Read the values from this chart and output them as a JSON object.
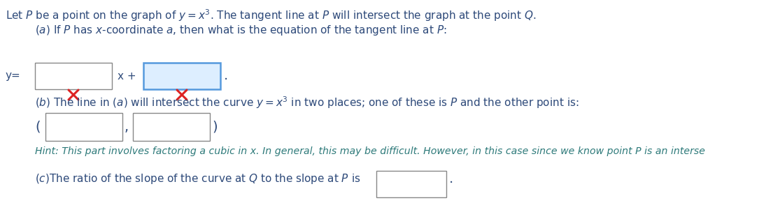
{
  "bg_color": "#ffffff",
  "text_color": "#2e4a7a",
  "hint_color": "#2e7a7a",
  "box_border_color": "#888888",
  "box_fill_color": "#ffffff",
  "active_box_border": "#5599dd",
  "active_box_fill": "#ddeeff",
  "cross_color": "#dd2222",
  "hint_text": "Hint: This part involves factoring a cubic in x. In general, this may be difficult. However, in this case since we know point P is an interse",
  "figsize": [
    10.85,
    2.94
  ],
  "dpi": 100
}
